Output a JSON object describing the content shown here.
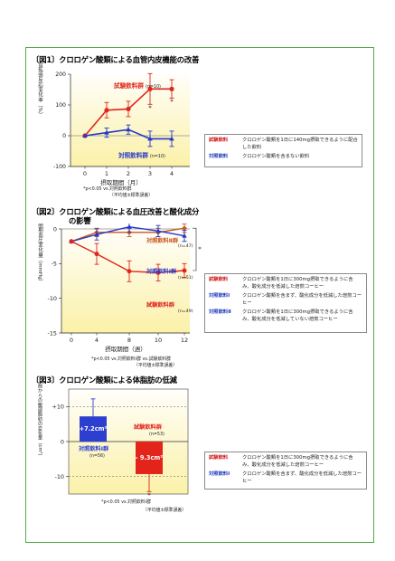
{
  "chart_data": [
    {
      "type": "line",
      "title": "〔図1〕クロロゲン酸類による血管内皮機能の改善",
      "ylabel": "血管拡張反応変化率（%）",
      "xlabel": "摂取期間（月）",
      "x": [
        0,
        1,
        2,
        3,
        4
      ],
      "x_ticks": [
        "0",
        "1",
        "2",
        "3",
        "4"
      ],
      "ylim": [
        -100,
        200
      ],
      "y_ticks": [
        -100,
        0,
        100,
        200
      ],
      "series": [
        {
          "name": "試験飲料群",
          "n": "(n=10)",
          "color": "#e0251c",
          "values": [
            0,
            83,
            87,
            152,
            152
          ],
          "err": [
            0,
            25,
            25,
            50,
            30
          ]
        },
        {
          "name": "対照飲料群",
          "n": "(n=10)",
          "color": "#2638c9",
          "values": [
            0,
            10,
            20,
            -10,
            -10
          ],
          "err": [
            0,
            15,
            15,
            25,
            25
          ]
        }
      ],
      "markers": [
        {
          "x": 3,
          "text": "*"
        },
        {
          "x": 4,
          "text": "*"
        }
      ],
      "footnotes": [
        "*p<0.05 vs.対照飲料群",
        "（平均値±標準誤差）"
      ],
      "legend": [
        {
          "key": "試験飲料",
          "text": "クロロゲン酸類を1日に140mg摂取できるように配合した飲料"
        },
        {
          "key": "対照飲料",
          "text": "クロロゲン酸類を含まない飲料"
        }
      ]
    },
    {
      "type": "line",
      "title": "〔図2〕クロロゲン酸類による血圧改善と酸化成分の影響",
      "ylabel": "収縮期血圧変化量（mmHg）",
      "xlabel": "摂取期間（週）",
      "x": [
        0,
        4,
        8,
        10,
        12
      ],
      "x_ticks": [
        "0",
        "4",
        "8",
        "10",
        "12"
      ],
      "ylim": [
        -15,
        0
      ],
      "y_ticks": [
        0,
        -5,
        -10,
        -15
      ],
      "series": [
        {
          "name": "対照飲料Ⅱ群",
          "n": "(n=47)",
          "color": "#c8571e",
          "values": [
            -1.8,
            -0.5,
            -0.5,
            -0.5,
            0.1
          ],
          "err": [
            0,
            0.6,
            0.6,
            0.6,
            0.6
          ]
        },
        {
          "name": "対照飲料Ⅰ群",
          "n": "(n=51)",
          "color": "#2638c9",
          "values": [
            -1.8,
            -0.8,
            0.3,
            -0.3,
            -1.0
          ],
          "err": [
            0,
            0.8,
            0.8,
            0.8,
            0.8
          ]
        },
        {
          "name": "試験飲料群",
          "n": "(n=49)",
          "color": "#e0251c",
          "values": [
            -1.8,
            -3.6,
            -6.1,
            -6.3,
            -6.0
          ],
          "err": [
            0,
            1.5,
            1.5,
            1.2,
            1.0
          ]
        }
      ],
      "markers": [
        {
          "text": "*"
        }
      ],
      "footnotes": [
        "*p<0.05 vs.対照飲料Ⅰ群 vs.試験飲料群",
        "（平均値±標準誤差）"
      ],
      "legend": [
        {
          "key": "試験飲料",
          "text": "クロロゲン酸類を1日に300mg摂取できるように含み、酸化成分を低減した焙煎コーヒー"
        },
        {
          "key": "対照飲料Ⅰ",
          "text": "クロロゲン酸類を含まず、酸化成分を低減した焙煎コーヒー"
        },
        {
          "key": "対照飲料Ⅱ",
          "text": "クロロゲン酸類を1日に300mg摂取できるように含み、酸化成分を低減していない焙煎コーヒー"
        }
      ]
    },
    {
      "type": "bar",
      "title": "〔図3〕クロロゲン酸類による体脂肪の低減",
      "ylabel": "12週間継続飲用後、摂取前からの腹部脂肪の変化量（cm²）",
      "ylim": [
        -15,
        15
      ],
      "y_ticks": [
        "+10",
        "0",
        "-10"
      ],
      "categories": [
        "対照飲料Ⅰ群",
        "試験飲料群"
      ],
      "values": [
        7.2,
        -9.3
      ],
      "err": [
        5,
        5
      ],
      "value_labels": [
        "+7.2cm²",
        "- 9.3cm²"
      ],
      "n": [
        "(n=56)",
        "(n=53)"
      ],
      "colors": [
        "#2d3fd0",
        "#e3241b"
      ],
      "markers": [
        {
          "text": "*"
        }
      ],
      "footnotes": [
        "*p<0.05 vs.対照飲料Ⅰ群",
        "（平均値±標準誤差）"
      ],
      "legend": [
        {
          "key": "試験飲料",
          "text": "クロロゲン酸類を1日に300mg摂取できるように含み、酸化成分を低減した焙煎コーヒー"
        },
        {
          "key": "対照飲料Ⅰ",
          "text": "クロロゲン酸類を含まず、酸化成分を低減した焙煎コーヒー"
        }
      ]
    }
  ]
}
